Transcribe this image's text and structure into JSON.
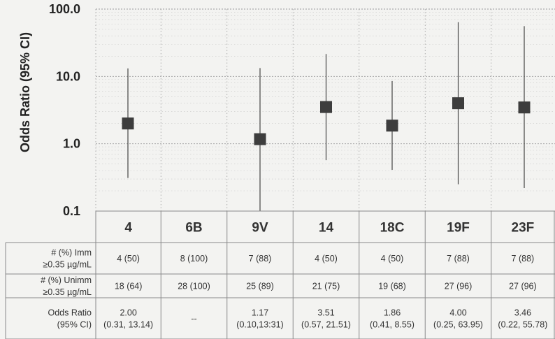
{
  "chart_data": {
    "type": "scatter",
    "ylabel": "Odds Ratio (95% CI)",
    "y_scale": "log",
    "ylim": [
      0.1,
      100
    ],
    "y_ticks": [
      "0.1",
      "1.0",
      "10.0",
      "100.0"
    ],
    "y_tick_values": [
      0.1,
      1,
      10,
      100
    ],
    "grid": true,
    "categories": [
      "4",
      "6B",
      "9V",
      "14",
      "18C",
      "19F",
      "23F"
    ],
    "series": [
      {
        "values": [
          2.0,
          null,
          1.17,
          3.51,
          1.86,
          4.0,
          3.46
        ],
        "ci_low": [
          0.31,
          null,
          0.1,
          0.57,
          0.41,
          0.25,
          0.22
        ],
        "ci_high": [
          13.14,
          null,
          13.31,
          21.51,
          8.55,
          63.95,
          55.78
        ]
      }
    ]
  },
  "table": {
    "rows": [
      {
        "label_lines": [
          "# (%) Imm",
          "≥0.35 µg/mL"
        ],
        "cells": [
          [
            "4 (50)"
          ],
          [
            "8 (100)"
          ],
          [
            "7 (88)"
          ],
          [
            "4 (50)"
          ],
          [
            "4 (50)"
          ],
          [
            "7 (88)"
          ],
          [
            "7 (88)"
          ]
        ]
      },
      {
        "label_lines": [
          "# (%) Unimm",
          "≥0.35 µg/mL"
        ],
        "cells": [
          [
            "18 (64)"
          ],
          [
            "28 (100)"
          ],
          [
            "25 (89)"
          ],
          [
            "21 (75)"
          ],
          [
            "19 (68)"
          ],
          [
            "27 (96)"
          ],
          [
            "27 (96)"
          ]
        ]
      },
      {
        "label_lines": [
          "Odds Ratio",
          "(95% CI)"
        ],
        "cells": [
          [
            "2.00",
            "(0.31, 13.14)"
          ],
          [
            "--"
          ],
          [
            "1.17",
            "(0.10,13:31)"
          ],
          [
            "3.51",
            "(0.57, 21.51)"
          ],
          [
            "1.86",
            "(0.41, 8.55)"
          ],
          [
            "4.00",
            "(0.25, 63.95)"
          ],
          [
            "3.46",
            "(0.22, 55.78)"
          ]
        ]
      }
    ]
  },
  "colors": {
    "marker": "#3d3d3d",
    "whisker": "#444444",
    "grid_major": "#9a9a9a",
    "grid_minor": "#bdbdbd",
    "table_line": "#8a8a8a",
    "background": "#f3f3f1"
  }
}
